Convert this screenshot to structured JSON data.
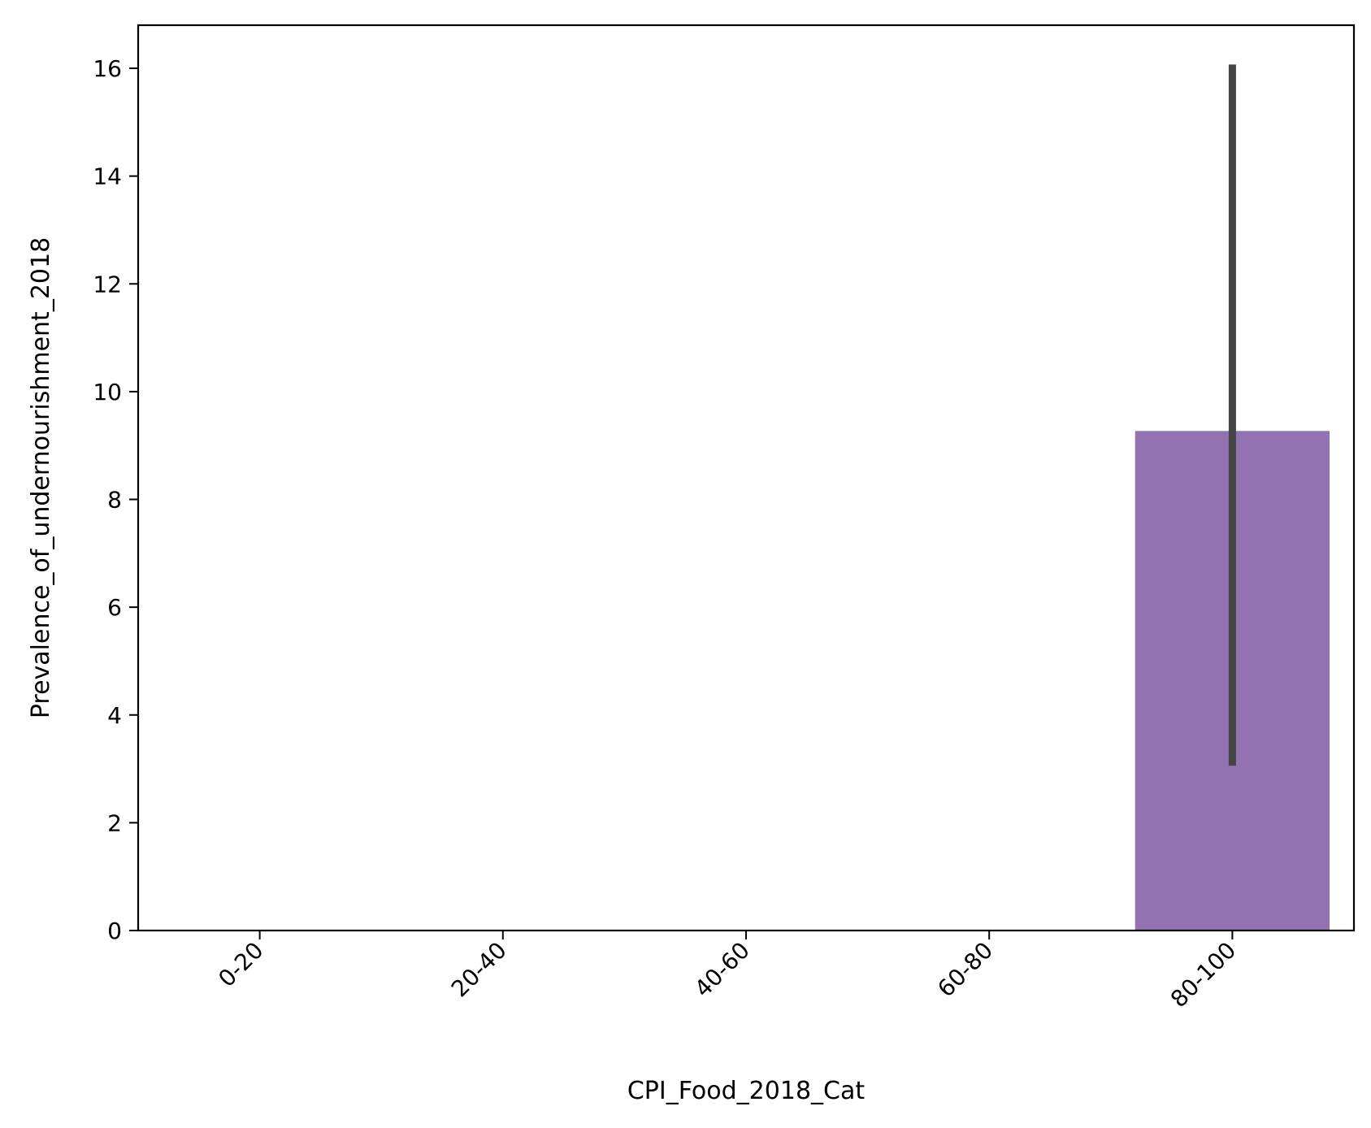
{
  "chart_data": {
    "type": "bar",
    "title": "",
    "xlabel": "CPI_Food_2018_Cat",
    "ylabel": "Prevalence_of_undernourishment_2018",
    "categories": [
      "0-20",
      "20-40",
      "40-60",
      "60-80",
      "80-100"
    ],
    "values": [
      null,
      null,
      null,
      null,
      9.27
    ],
    "error_bars": [
      null,
      null,
      null,
      null,
      [
        3.06,
        16.07
      ]
    ],
    "ylim": [
      0,
      16.8
    ],
    "yticks": [
      0,
      2,
      4,
      6,
      8,
      10,
      12,
      14,
      16
    ],
    "grid": false,
    "legend": "none",
    "colors": {
      "bar": "#9272b0",
      "error_bar": "#444444",
      "axes": "#000000"
    }
  }
}
